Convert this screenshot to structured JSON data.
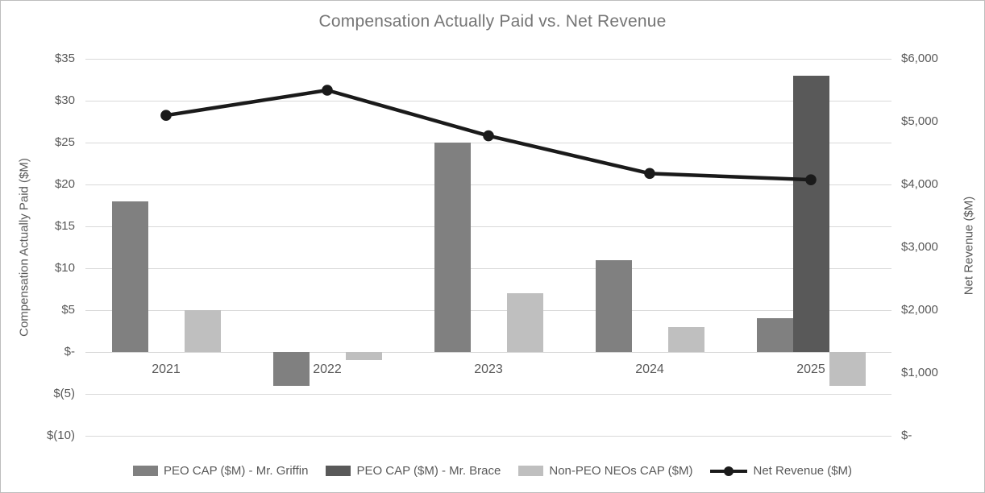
{
  "chart_data": {
    "type": "bar",
    "subtype": "grouped-bars-with-line-overlay",
    "title": "Compensation Actually Paid vs. Net Revenue",
    "categories": [
      "2021",
      "2022",
      "2023",
      "2024",
      "2025"
    ],
    "bar_series": [
      {
        "name": "PEO CAP ($M) - Mr. Griffin",
        "color": "#808080",
        "axis": "left",
        "values": [
          18,
          -4,
          25,
          11,
          4
        ]
      },
      {
        "name": "PEO CAP ($M) - Mr. Brace",
        "color": "#595959",
        "axis": "left",
        "values": [
          null,
          null,
          null,
          null,
          33
        ]
      },
      {
        "name": "Non-PEO NEOs CAP ($M)",
        "color": "#bfbfbf",
        "axis": "left",
        "values": [
          5,
          -1,
          7,
          3,
          -4
        ]
      }
    ],
    "line_series": {
      "name": "Net Revenue ($M)",
      "color": "#1a1a1a",
      "axis": "right",
      "values": [
        5100,
        5500,
        4775,
        4175,
        4075
      ]
    },
    "left_axis": {
      "label": "Compensation Actually Paid ($M)",
      "min": -10,
      "max": 35,
      "ticks": [
        {
          "value": 35,
          "label": "$35"
        },
        {
          "value": 30,
          "label": "$30"
        },
        {
          "value": 25,
          "label": "$25"
        },
        {
          "value": 20,
          "label": "$20"
        },
        {
          "value": 15,
          "label": "$15"
        },
        {
          "value": 10,
          "label": "$10"
        },
        {
          "value": 5,
          "label": "$5"
        },
        {
          "value": 0,
          "label": "$-"
        },
        {
          "value": -5,
          "label": "$(5)"
        },
        {
          "value": -10,
          "label": "$(10)"
        }
      ]
    },
    "right_axis": {
      "label": "Net Revenue ($M)",
      "min": 0,
      "max": 6000,
      "ticks": [
        {
          "value": 6000,
          "label": "$6,000"
        },
        {
          "value": 5000,
          "label": "$5,000"
        },
        {
          "value": 4000,
          "label": "$4,000"
        },
        {
          "value": 3000,
          "label": "$3,000"
        },
        {
          "value": 2000,
          "label": "$2,000"
        },
        {
          "value": 1000,
          "label": "$1,000"
        },
        {
          "value": 0,
          "label": "$-"
        }
      ]
    },
    "legend_position": "bottom",
    "grid": true,
    "colors": {
      "gridline": "#d9d9d9",
      "title_text": "#757575",
      "axis_text": "#595959",
      "frame_border": "#bdbdbd",
      "background": "#ffffff"
    }
  }
}
